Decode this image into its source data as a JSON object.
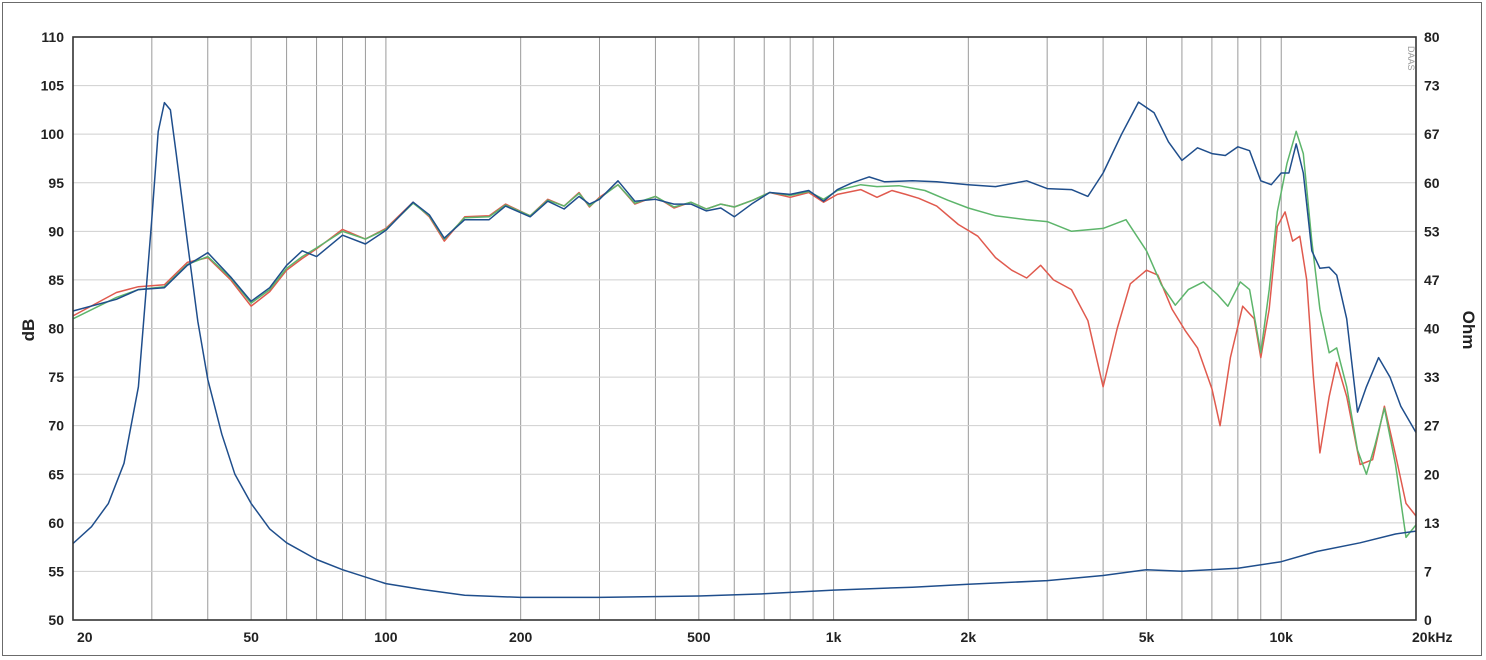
{
  "chart_data": {
    "type": "line",
    "title": "",
    "xlabel": "",
    "ylabel": "dB",
    "y2label": "Ohm",
    "x_scale": "log",
    "xlim": [
      20,
      20000
    ],
    "ylim": [
      50,
      110
    ],
    "y2lim": [
      0,
      80
    ],
    "grid": true,
    "legend": "none",
    "watermark": "DAAS",
    "x_tick_labels": [
      {
        "value": 20,
        "label": "20"
      },
      {
        "value": 50,
        "label": "50"
      },
      {
        "value": 100,
        "label": "100"
      },
      {
        "value": 200,
        "label": "200"
      },
      {
        "value": 500,
        "label": "500"
      },
      {
        "value": 1000,
        "label": "1k"
      },
      {
        "value": 2000,
        "label": "2k"
      },
      {
        "value": 5000,
        "label": "5k"
      },
      {
        "value": 10000,
        "label": "10k"
      },
      {
        "value": 20000,
        "label": "20kHz"
      }
    ],
    "y_ticks": [
      50,
      55,
      60,
      65,
      70,
      75,
      80,
      85,
      90,
      95,
      100,
      105,
      110
    ],
    "y2_ticks": [
      {
        "value": 0,
        "label": "0"
      },
      {
        "value": 6.67,
        "label": "7"
      },
      {
        "value": 13.33,
        "label": "13"
      },
      {
        "value": 20,
        "label": "20"
      },
      {
        "value": 26.67,
        "label": "27"
      },
      {
        "value": 33.33,
        "label": "33"
      },
      {
        "value": 40,
        "label": "40"
      },
      {
        "value": 46.67,
        "label": "47"
      },
      {
        "value": 53.33,
        "label": "53"
      },
      {
        "value": 60,
        "label": "60"
      },
      {
        "value": 66.67,
        "label": "67"
      },
      {
        "value": 73.33,
        "label": "73"
      },
      {
        "value": 80,
        "label": "80"
      }
    ],
    "series": [
      {
        "axis": "y",
        "color": "#e05a4e",
        "points": [
          [
            20,
            81.3
          ],
          [
            25,
            83.7
          ],
          [
            28,
            84.3
          ],
          [
            32,
            84.5
          ],
          [
            36,
            86.8
          ],
          [
            40,
            87.3
          ],
          [
            45,
            85
          ],
          [
            50,
            82.3
          ],
          [
            55,
            83.8
          ],
          [
            60,
            86
          ],
          [
            65,
            87.2
          ],
          [
            70,
            88.2
          ],
          [
            80,
            90.2
          ],
          [
            90,
            89.2
          ],
          [
            100,
            90.3
          ],
          [
            115,
            93
          ],
          [
            125,
            91.5
          ],
          [
            135,
            89
          ],
          [
            150,
            91.5
          ],
          [
            170,
            91.6
          ],
          [
            185,
            92.8
          ],
          [
            210,
            91.6
          ],
          [
            230,
            93.3
          ],
          [
            250,
            92.6
          ],
          [
            270,
            94
          ],
          [
            285,
            92.5
          ],
          [
            300,
            93.5
          ],
          [
            330,
            94.8
          ],
          [
            360,
            92.8
          ],
          [
            400,
            93.6
          ],
          [
            440,
            92.4
          ],
          [
            480,
            93
          ],
          [
            520,
            92.3
          ],
          [
            560,
            92.8
          ],
          [
            600,
            92.5
          ],
          [
            660,
            93.2
          ],
          [
            720,
            94
          ],
          [
            800,
            93.5
          ],
          [
            880,
            94
          ],
          [
            950,
            93
          ],
          [
            1020,
            93.8
          ],
          [
            1150,
            94.3
          ],
          [
            1250,
            93.5
          ],
          [
            1350,
            94.2
          ],
          [
            1450,
            93.8
          ],
          [
            1550,
            93.4
          ],
          [
            1700,
            92.6
          ],
          [
            1900,
            90.7
          ],
          [
            2100,
            89.5
          ],
          [
            2300,
            87.3
          ],
          [
            2500,
            86
          ],
          [
            2700,
            85.2
          ],
          [
            2900,
            86.5
          ],
          [
            3100,
            85
          ],
          [
            3400,
            84
          ],
          [
            3700,
            80.8
          ],
          [
            4000,
            74
          ],
          [
            4300,
            80
          ],
          [
            4600,
            84.6
          ],
          [
            5000,
            86
          ],
          [
            5300,
            85.5
          ],
          [
            5700,
            82
          ],
          [
            6100,
            79.8
          ],
          [
            6500,
            78
          ],
          [
            7000,
            73.8
          ],
          [
            7300,
            70
          ],
          [
            7700,
            77
          ],
          [
            8200,
            82.3
          ],
          [
            8700,
            81
          ],
          [
            9000,
            77
          ],
          [
            9400,
            82
          ],
          [
            9800,
            90.5
          ],
          [
            10200,
            92
          ],
          [
            10600,
            89
          ],
          [
            11000,
            89.5
          ],
          [
            11400,
            85
          ],
          [
            11800,
            75
          ],
          [
            12200,
            67.2
          ],
          [
            12800,
            73
          ],
          [
            13300,
            76.5
          ],
          [
            14000,
            73
          ],
          [
            15000,
            66
          ],
          [
            16000,
            66.5
          ],
          [
            17000,
            72
          ],
          [
            18000,
            67
          ],
          [
            19000,
            62
          ],
          [
            20000,
            60.7
          ]
        ]
      },
      {
        "axis": "y",
        "color": "#5db56b",
        "points": [
          [
            20,
            81
          ],
          [
            25,
            83.2
          ],
          [
            28,
            84
          ],
          [
            32,
            84.3
          ],
          [
            36,
            86.6
          ],
          [
            40,
            87.4
          ],
          [
            45,
            85.2
          ],
          [
            50,
            82.6
          ],
          [
            55,
            84
          ],
          [
            60,
            86.2
          ],
          [
            65,
            87.4
          ],
          [
            70,
            88.3
          ],
          [
            80,
            90
          ],
          [
            90,
            89.2
          ],
          [
            100,
            90.2
          ],
          [
            115,
            92.9
          ],
          [
            125,
            91.6
          ],
          [
            135,
            89.2
          ],
          [
            150,
            91.4
          ],
          [
            170,
            91.5
          ],
          [
            185,
            92.7
          ],
          [
            210,
            91.6
          ],
          [
            230,
            93.2
          ],
          [
            250,
            92.6
          ],
          [
            270,
            93.9
          ],
          [
            285,
            92.6
          ],
          [
            300,
            93.4
          ],
          [
            330,
            94.8
          ],
          [
            360,
            92.9
          ],
          [
            400,
            93.6
          ],
          [
            440,
            92.5
          ],
          [
            480,
            93
          ],
          [
            520,
            92.3
          ],
          [
            560,
            92.8
          ],
          [
            600,
            92.5
          ],
          [
            660,
            93.2
          ],
          [
            720,
            94
          ],
          [
            800,
            93.7
          ],
          [
            880,
            94.1
          ],
          [
            950,
            93.3
          ],
          [
            1020,
            94.2
          ],
          [
            1150,
            94.8
          ],
          [
            1250,
            94.6
          ],
          [
            1400,
            94.7
          ],
          [
            1600,
            94.2
          ],
          [
            1800,
            93.2
          ],
          [
            2000,
            92.4
          ],
          [
            2300,
            91.6
          ],
          [
            2700,
            91.2
          ],
          [
            3000,
            91
          ],
          [
            3400,
            90
          ],
          [
            4000,
            90.3
          ],
          [
            4500,
            91.2
          ],
          [
            5000,
            88
          ],
          [
            5400,
            84.5
          ],
          [
            5800,
            82.4
          ],
          [
            6200,
            84
          ],
          [
            6700,
            84.8
          ],
          [
            7200,
            83.5
          ],
          [
            7600,
            82.3
          ],
          [
            8100,
            84.8
          ],
          [
            8500,
            84
          ],
          [
            9000,
            77.5
          ],
          [
            9400,
            84
          ],
          [
            9800,
            92
          ],
          [
            10300,
            97
          ],
          [
            10800,
            100.3
          ],
          [
            11200,
            98
          ],
          [
            11700,
            89
          ],
          [
            12200,
            82
          ],
          [
            12800,
            77.5
          ],
          [
            13300,
            78
          ],
          [
            14000,
            74
          ],
          [
            14800,
            67.5
          ],
          [
            15500,
            65
          ],
          [
            16200,
            68
          ],
          [
            17000,
            71.8
          ],
          [
            18000,
            66
          ],
          [
            19000,
            58.5
          ],
          [
            20000,
            59.8
          ]
        ]
      },
      {
        "axis": "y",
        "color": "#1f4e8c",
        "points": [
          [
            20,
            81.8
          ],
          [
            25,
            83
          ],
          [
            28,
            84
          ],
          [
            32,
            84.2
          ],
          [
            36,
            86.5
          ],
          [
            40,
            87.8
          ],
          [
            45,
            85.3
          ],
          [
            50,
            82.8
          ],
          [
            55,
            84.2
          ],
          [
            60,
            86.5
          ],
          [
            65,
            88
          ],
          [
            70,
            87.4
          ],
          [
            80,
            89.6
          ],
          [
            90,
            88.7
          ],
          [
            100,
            90.1
          ],
          [
            115,
            93
          ],
          [
            125,
            91.7
          ],
          [
            135,
            89.3
          ],
          [
            150,
            91.2
          ],
          [
            170,
            91.2
          ],
          [
            185,
            92.6
          ],
          [
            210,
            91.5
          ],
          [
            230,
            93.1
          ],
          [
            250,
            92.3
          ],
          [
            270,
            93.6
          ],
          [
            285,
            92.8
          ],
          [
            300,
            93.3
          ],
          [
            330,
            95.2
          ],
          [
            360,
            93.1
          ],
          [
            400,
            93.3
          ],
          [
            440,
            92.8
          ],
          [
            480,
            92.8
          ],
          [
            520,
            92.1
          ],
          [
            560,
            92.4
          ],
          [
            600,
            91.5
          ],
          [
            660,
            92.9
          ],
          [
            720,
            94
          ],
          [
            800,
            93.8
          ],
          [
            880,
            94.2
          ],
          [
            950,
            93.1
          ],
          [
            1020,
            94.3
          ],
          [
            1100,
            95
          ],
          [
            1200,
            95.6
          ],
          [
            1300,
            95.1
          ],
          [
            1500,
            95.2
          ],
          [
            1700,
            95.1
          ],
          [
            2000,
            94.8
          ],
          [
            2300,
            94.6
          ],
          [
            2700,
            95.2
          ],
          [
            3000,
            94.4
          ],
          [
            3400,
            94.3
          ],
          [
            3700,
            93.6
          ],
          [
            4000,
            96
          ],
          [
            4400,
            100
          ],
          [
            4800,
            103.3
          ],
          [
            5200,
            102.2
          ],
          [
            5600,
            99.2
          ],
          [
            6000,
            97.3
          ],
          [
            6500,
            98.6
          ],
          [
            7000,
            98
          ],
          [
            7500,
            97.8
          ],
          [
            8000,
            98.7
          ],
          [
            8500,
            98.3
          ],
          [
            9000,
            95.2
          ],
          [
            9500,
            94.8
          ],
          [
            10000,
            96
          ],
          [
            10400,
            96
          ],
          [
            10800,
            99
          ],
          [
            11200,
            96
          ],
          [
            11700,
            88
          ],
          [
            12200,
            86.2
          ],
          [
            12800,
            86.3
          ],
          [
            13300,
            85.5
          ],
          [
            14000,
            81
          ],
          [
            14800,
            71.4
          ],
          [
            15500,
            74
          ],
          [
            16500,
            77
          ],
          [
            17500,
            75
          ],
          [
            18500,
            72
          ],
          [
            20000,
            69.3
          ]
        ]
      },
      {
        "axis": "y2",
        "color": "#1f4e8c",
        "points": [
          [
            20,
            10.5
          ],
          [
            22,
            12.8
          ],
          [
            24,
            16
          ],
          [
            26,
            21.5
          ],
          [
            28,
            32
          ],
          [
            30,
            55
          ],
          [
            31,
            67
          ],
          [
            32,
            71
          ],
          [
            33,
            70
          ],
          [
            34,
            64
          ],
          [
            36,
            52
          ],
          [
            38,
            41
          ],
          [
            40,
            33
          ],
          [
            43,
            25.5
          ],
          [
            46,
            20
          ],
          [
            50,
            16
          ],
          [
            55,
            12.5
          ],
          [
            60,
            10.6
          ],
          [
            70,
            8.3
          ],
          [
            80,
            6.9
          ],
          [
            100,
            5
          ],
          [
            120,
            4.2
          ],
          [
            150,
            3.4
          ],
          [
            200,
            3.1
          ],
          [
            300,
            3.1
          ],
          [
            500,
            3.3
          ],
          [
            700,
            3.6
          ],
          [
            1000,
            4.1
          ],
          [
            1500,
            4.5
          ],
          [
            2000,
            4.9
          ],
          [
            3000,
            5.4
          ],
          [
            4000,
            6.1
          ],
          [
            5000,
            6.9
          ],
          [
            6000,
            6.7
          ],
          [
            8000,
            7.1
          ],
          [
            10000,
            8
          ],
          [
            12000,
            9.4
          ],
          [
            15000,
            10.6
          ],
          [
            18000,
            11.8
          ],
          [
            20000,
            12.2
          ]
        ]
      }
    ]
  }
}
